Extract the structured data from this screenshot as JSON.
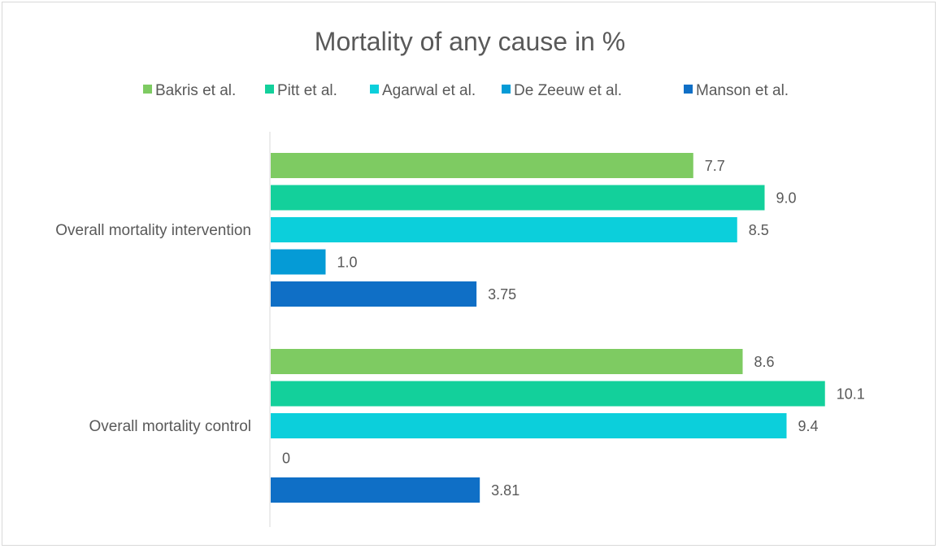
{
  "chart_data": {
    "type": "bar",
    "orientation": "horizontal",
    "title": "Mortality of any cause in %",
    "categories": [
      "Overall mortality intervention",
      "Overall mortality control"
    ],
    "series": [
      {
        "name": "Bakris et al.",
        "color": "#7ecb62",
        "values": [
          7.7,
          8.6
        ],
        "labels": [
          "7.7",
          "8.6"
        ]
      },
      {
        "name": "Pitt et al.",
        "color": "#13d09b",
        "values": [
          9.0,
          10.1
        ],
        "labels": [
          "9.0",
          "10.1"
        ]
      },
      {
        "name": "Agarwal et al.",
        "color": "#0ccfdb",
        "values": [
          8.5,
          9.4
        ],
        "labels": [
          "8.5",
          "9.4"
        ]
      },
      {
        "name": "De Zeeuw et al.",
        "color": "#059bd6",
        "values": [
          1.0,
          0
        ],
        "labels": [
          "1.0",
          "0"
        ]
      },
      {
        "name": "Manson et al.",
        "color": "#0f6fc6",
        "values": [
          3.75,
          3.81
        ],
        "labels": [
          "3.75",
          "3.81"
        ]
      }
    ],
    "xlim": [
      0,
      10.8
    ],
    "grid": false,
    "legend": "top"
  }
}
